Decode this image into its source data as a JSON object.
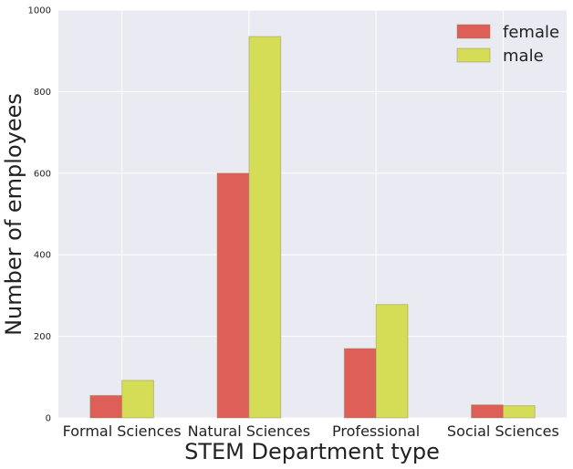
{
  "chart_data": {
    "type": "bar",
    "title": "",
    "xlabel": "STEM Department type",
    "ylabel": "Number of employees",
    "categories": [
      "Formal Sciences",
      "Natural Sciences",
      "Professional",
      "Social Sciences"
    ],
    "series": [
      {
        "name": "female",
        "values": [
          55,
          600,
          170,
          32
        ],
        "color": "#dd5f57"
      },
      {
        "name": "male",
        "values": [
          92,
          935,
          278,
          30
        ],
        "color": "#d5dd57"
      }
    ],
    "ylim": [
      0,
      1000
    ],
    "yticks": [
      0,
      200,
      400,
      600,
      800,
      1000
    ],
    "grid": true,
    "legend_position": "top-right",
    "background_color": "#eaeaf2"
  }
}
